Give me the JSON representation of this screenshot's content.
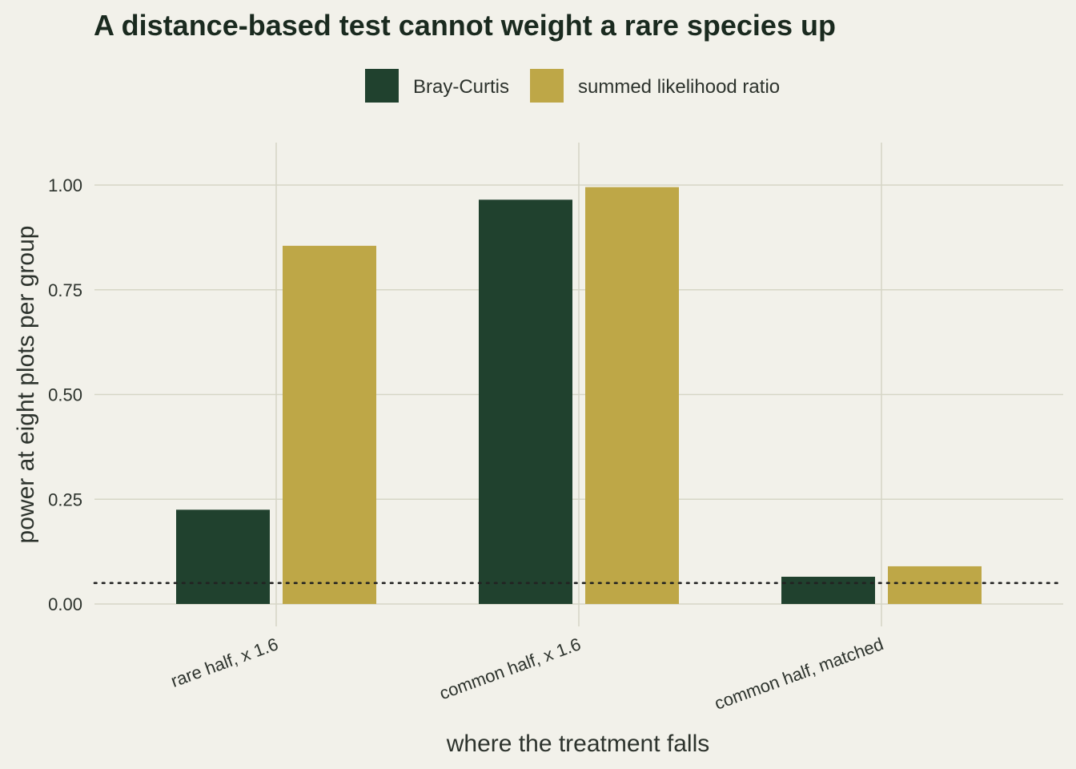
{
  "chart_data": {
    "type": "bar",
    "title": "A distance-based test cannot weight a rare species up",
    "xlabel": "where the treatment falls",
    "ylabel": "power at eight plots per group",
    "categories": [
      "rare half, x 1.6",
      "common half, x 1.6",
      "common half, matched"
    ],
    "series": [
      {
        "name": "Bray-Curtis",
        "color": "#20412e",
        "values": [
          0.225,
          0.965,
          0.065
        ]
      },
      {
        "name": "summed likelihood ratio",
        "color": "#bea747",
        "values": [
          0.855,
          0.995,
          0.09
        ]
      }
    ],
    "ylim": [
      0,
      1.1
    ],
    "yticks": [
      0,
      0.25,
      0.5,
      0.75,
      1.0
    ],
    "ytick_labels": [
      "0.00",
      "0.25",
      "0.50",
      "0.75",
      "1.00"
    ],
    "reference_line": {
      "y": 0.05,
      "style": "dotted"
    },
    "grid": true,
    "legend_position": "top-center",
    "colors": {
      "background": "#f2f1ea",
      "grid": "#d6d6c6",
      "text": "#2d332d",
      "reference_line": "#222222"
    }
  }
}
